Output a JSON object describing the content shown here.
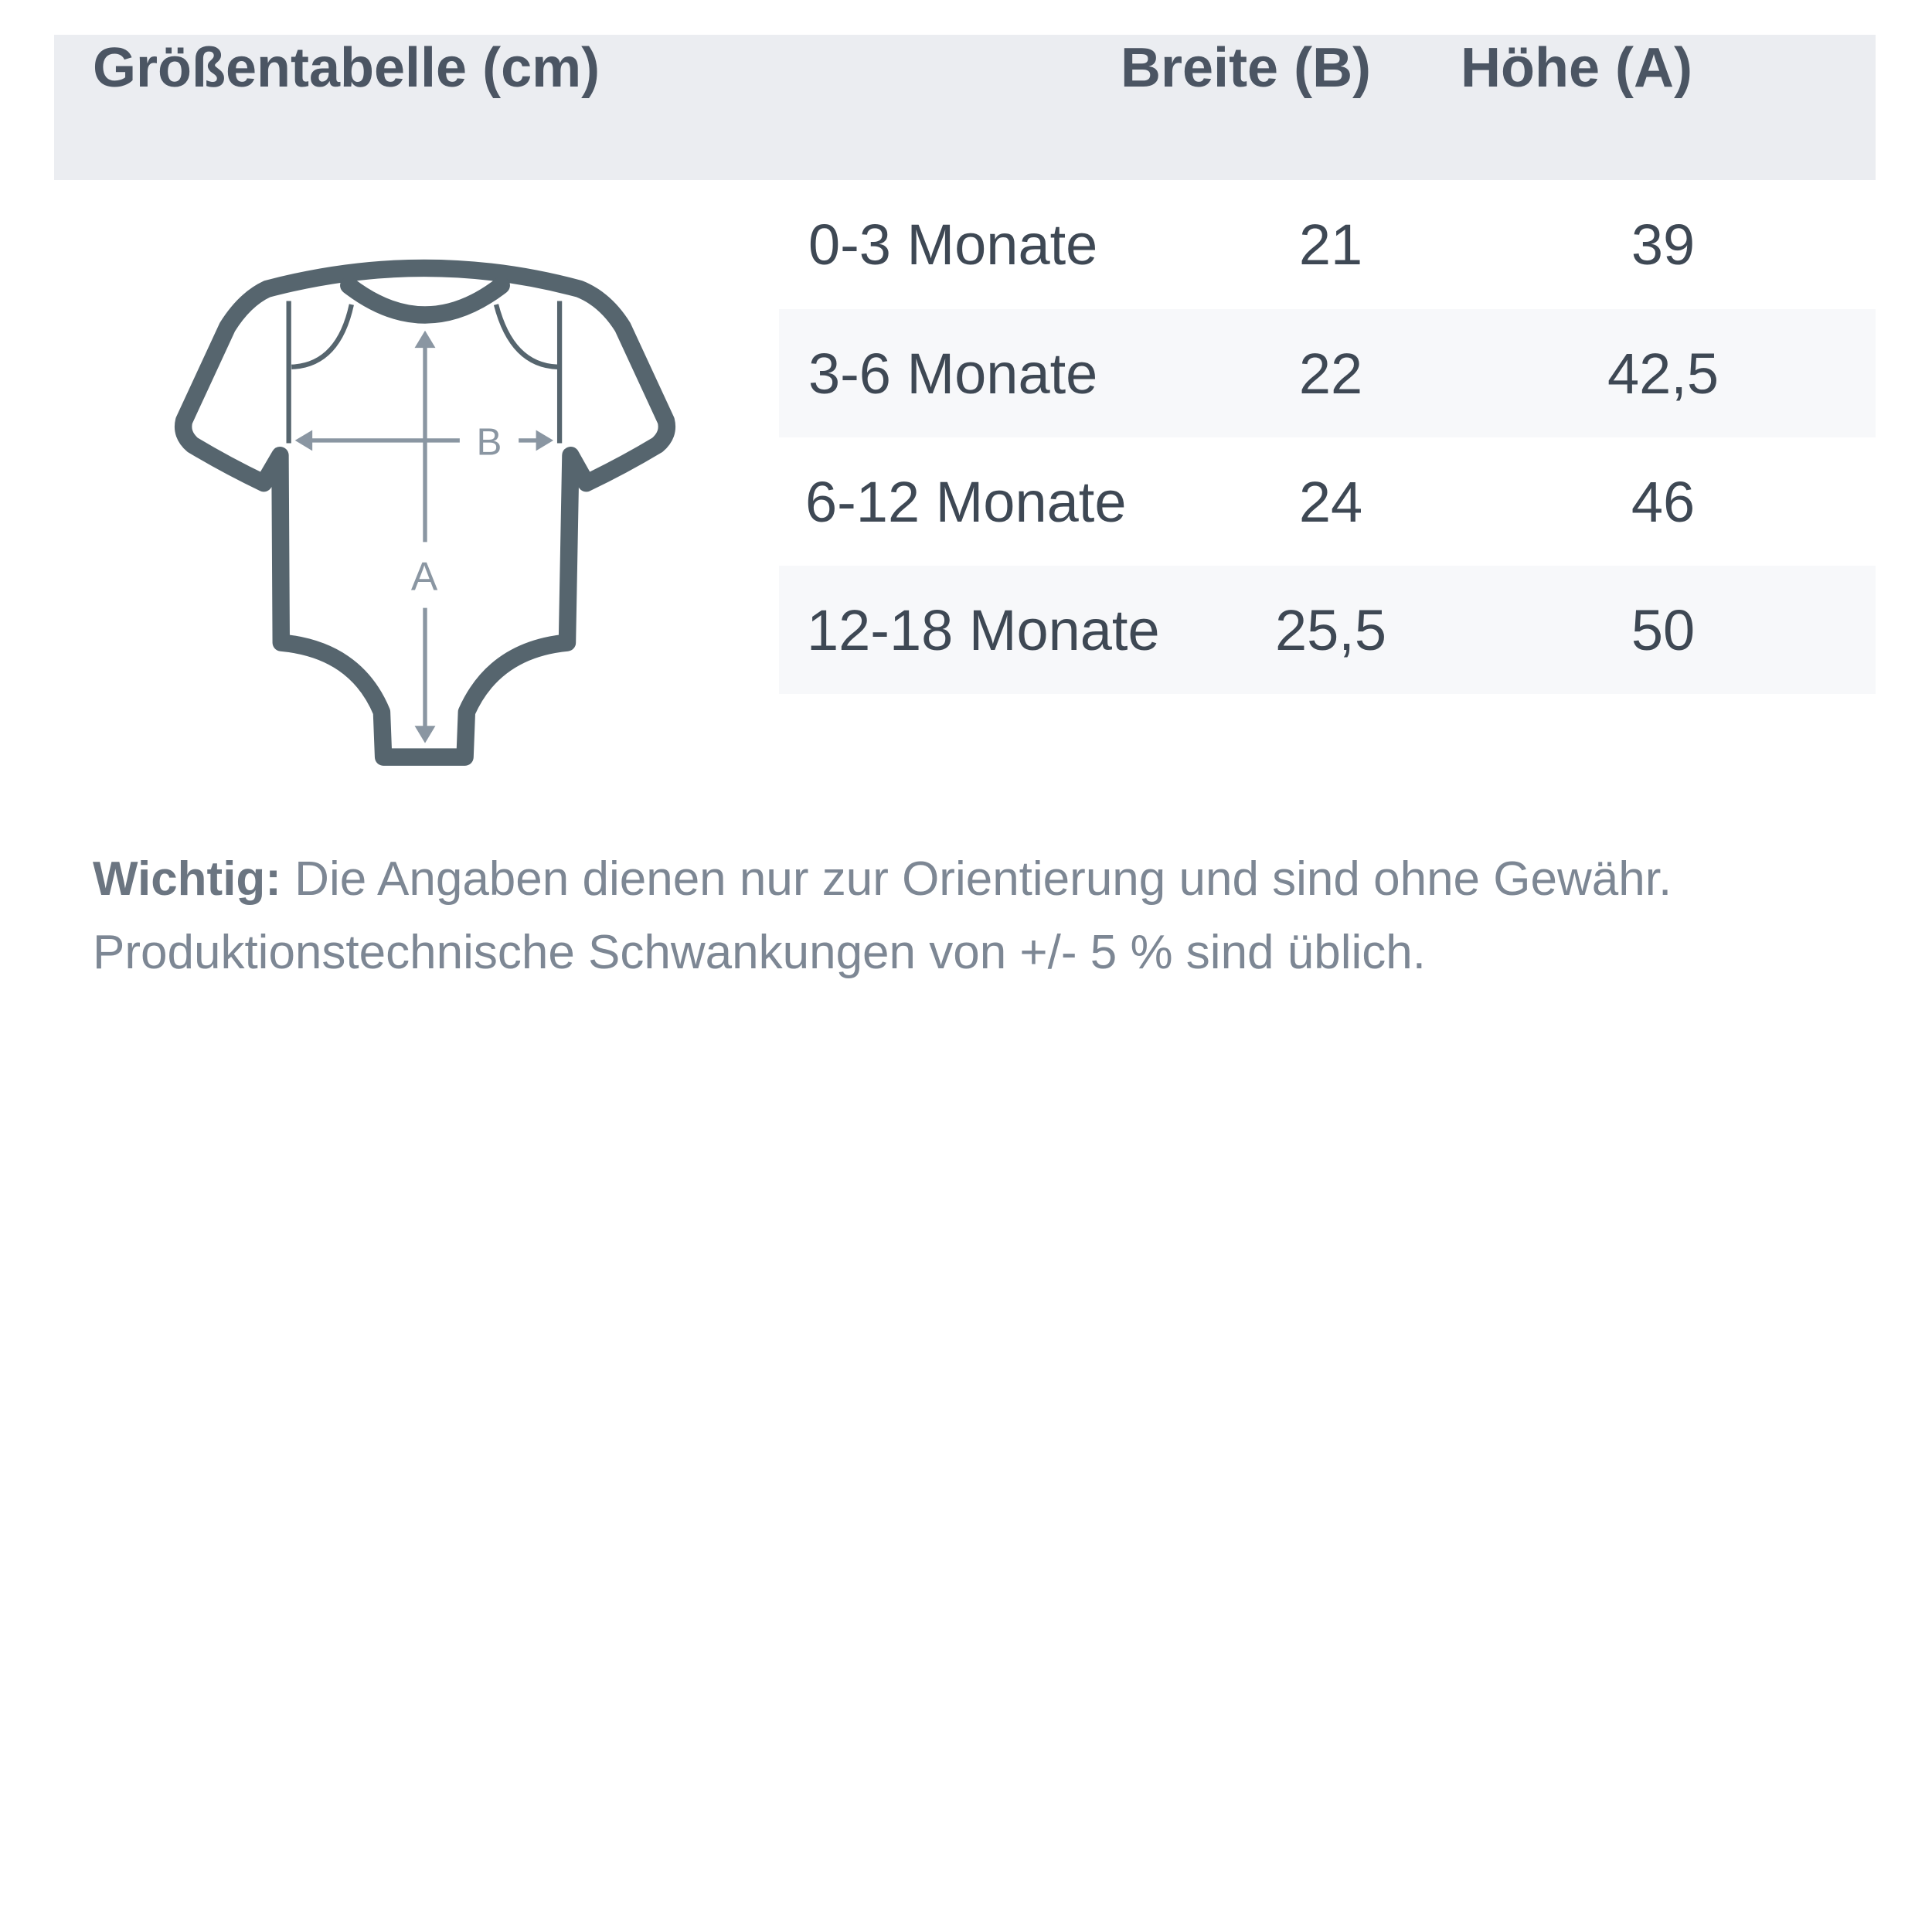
{
  "header": {
    "title": "Größentabelle (cm)",
    "col_width": "Breite (B)",
    "col_height": "Höhe (A)"
  },
  "rows": [
    {
      "size": "0-3 Monate",
      "width": "21",
      "height": "39"
    },
    {
      "size": "3-6 Monate",
      "width": "22",
      "height": "42,5"
    },
    {
      "size": "6-12 Monate",
      "width": "24",
      "height": "46"
    },
    {
      "size": "12-18 Monate",
      "width": "25,5",
      "height": "50"
    }
  ],
  "figure": {
    "label_b": "B",
    "label_a": "A"
  },
  "note": {
    "bold": "Wichtig:",
    "text": " Die Angaben dienen nur zur Orientierung und sind ohne Gewähr. Produktionstechnische Schwankungen von +/- 5 % sind üblich."
  },
  "colors": {
    "header_bg": "#ebedf1",
    "alt_row_bg": "#f7f8fa",
    "outline": "#56656e",
    "arrow": "#8a96a2",
    "text": "#3e4854"
  }
}
